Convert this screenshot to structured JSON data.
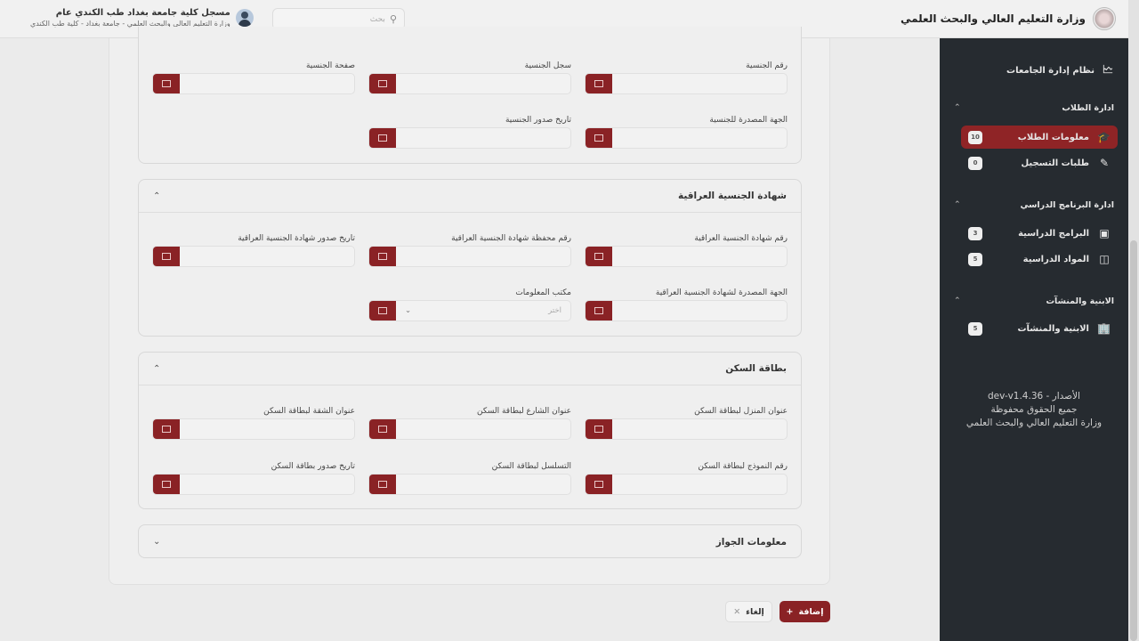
{
  "header": {
    "title": "وزارة التعليم العالي والبحث العلمي",
    "search_placeholder": "بحث",
    "user_name": "مسجل كلية جامعة بغداد طب الكندي عام",
    "user_sub": "وزارة التعليم العالي والبحث العلمي - جامعة بغداد - كلية طب الكندي"
  },
  "sidebar": {
    "top": "نظام إدارة الجامعات",
    "groups": [
      {
        "title": "ادارة الطلاب",
        "items": [
          {
            "label": "معلومات الطلاب",
            "badge": "10",
            "icon": "graduate-icon",
            "active": true
          },
          {
            "label": "طلبات التسجيل",
            "badge": "0",
            "icon": "edit-icon"
          }
        ]
      },
      {
        "title": "ادارة البرنامج الدراسي",
        "items": [
          {
            "label": "البرامج الدراسية",
            "badge": "3",
            "icon": "presentation-icon"
          },
          {
            "label": "المواد الدراسية",
            "badge": "5",
            "icon": "books-icon"
          }
        ]
      },
      {
        "title": "الابنية والمنشآت",
        "items": [
          {
            "label": "الابنية والمنشآت",
            "badge": "5",
            "icon": "building-icon"
          }
        ]
      }
    ],
    "footer": [
      "الأصدار - dev-v1.4.36",
      "جميع الحقوق محفوظة",
      "وزارة التعليم العالي والبحث العلمي"
    ]
  },
  "sections": [
    {
      "title": "",
      "fields": [
        "رقم الجنسية",
        "سجل الجنسية",
        "صفحة الجنسية",
        "الجهة المصدرة للجنسية",
        "تاريخ صدور الجنسية"
      ]
    },
    {
      "title": "شهادة الجنسية العراقية",
      "fields": [
        "رقم شهادة الجنسية العراقية",
        "رقم محفظة شهادة الجنسية العراقية",
        "تاريخ صدور شهادة الجنسية العراقية",
        "الجهة المصدرة لشهادة الجنسية العراقية",
        "مكتب المعلومات"
      ],
      "select_placeholder": "اختر"
    },
    {
      "title": "بطاقة السكن",
      "fields": [
        "عنوان المنزل لبطاقة السكن",
        "عنوان الشارع لبطاقة السكن",
        "عنوان الشقة لبطاقة السكن",
        "رقم النموذج لبطاقة السكن",
        "التسلسل لبطاقة السكن",
        "تاريخ صدور بطاقة السكن"
      ]
    },
    {
      "title": "معلومات الجواز",
      "collapsed": true
    }
  ],
  "actions": {
    "add": "إضافة",
    "cancel": "إلغاء"
  },
  "colors": {
    "accent": "#8a2225",
    "sidebar": "#262b30"
  }
}
